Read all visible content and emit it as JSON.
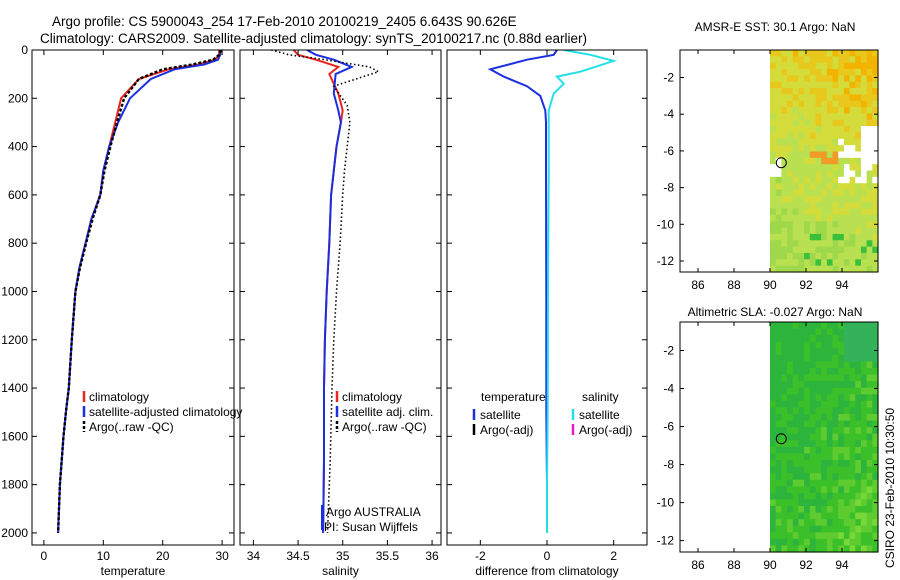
{
  "header": {
    "line1": "Argo profile: CS 5900043_254 17-Feb-2010 20100219_2405 6.643S 90.626E",
    "line2": "Climatology: CARS2009. Satellite-adjusted climatology: synTS_20100217.nc (0.88d earlier)"
  },
  "colors": {
    "climatology": "#e8251f",
    "satellite": "#1c2fe0",
    "argo": "#000000",
    "salinity_satellite": "#22e0e8",
    "argo_adj_salinity": "#e020c0"
  },
  "chart_data": [
    {
      "type": "line",
      "id": "temperature",
      "xlabel": "temperature",
      "xlim": [
        -2,
        32
      ],
      "ylim": [
        2050,
        0
      ],
      "xticks": [
        0,
        10,
        20,
        30
      ],
      "yticks": [
        0,
        200,
        400,
        600,
        800,
        1000,
        1200,
        1400,
        1600,
        1800,
        2000
      ],
      "series": [
        {
          "name": "climatology",
          "style": "line",
          "color_key": "climatology",
          "x": [
            29.5,
            29.5,
            28.8,
            26,
            21,
            16,
            13,
            12,
            11,
            10,
            9.5,
            8,
            7,
            6,
            5.3,
            4.7,
            4.2,
            3.7,
            3.3,
            3.0,
            2.7,
            2.4
          ],
          "y": [
            0,
            20,
            40,
            60,
            80,
            120,
            200,
            300,
            400,
            500,
            600,
            700,
            800,
            900,
            1000,
            1200,
            1400,
            1500,
            1600,
            1700,
            1800,
            2000
          ]
        },
        {
          "name": "satellite-adjusted climatology",
          "style": "line",
          "color_key": "satellite",
          "x": [
            29.7,
            29.7,
            29.3,
            27,
            22,
            18,
            14.5,
            12.5,
            11,
            10,
            9.5,
            8,
            7,
            6,
            5.3,
            4.7,
            4.2,
            3.7,
            3.3,
            3.0,
            2.7,
            2.4
          ],
          "y": [
            0,
            20,
            40,
            60,
            80,
            120,
            200,
            300,
            400,
            500,
            600,
            700,
            800,
            900,
            1000,
            1200,
            1400,
            1500,
            1600,
            1700,
            1800,
            2000
          ]
        },
        {
          "name": "Argo(..raw -QC)",
          "style": "dashed",
          "color_key": "argo",
          "x": [
            29.8,
            29.5,
            28.5,
            25,
            20,
            16,
            13.5,
            12.3,
            11.2,
            10.2,
            9.5,
            8.2,
            7.1,
            6.1,
            5.3,
            4.7,
            4.2,
            3.7,
            3.3,
            3.0,
            2.7,
            2.4
          ],
          "y": [
            0,
            20,
            40,
            60,
            80,
            120,
            200,
            300,
            400,
            500,
            600,
            700,
            800,
            900,
            1000,
            1200,
            1400,
            1500,
            1600,
            1700,
            1800,
            2000
          ]
        }
      ],
      "legend": {
        "position": "bottom-right",
        "entries": [
          {
            "label": "climatology",
            "color_key": "climatology"
          },
          {
            "label": "satellite-adjusted climatology",
            "color_key": "satellite"
          },
          {
            "label": "Argo(..raw -QC)",
            "color_key": "argo"
          }
        ]
      }
    },
    {
      "type": "line",
      "id": "salinity",
      "xlabel": "salinity",
      "xlim": [
        33.85,
        36.1
      ],
      "ylim": [
        2050,
        0
      ],
      "xticks": [
        34,
        34.5,
        35,
        35.5,
        36
      ],
      "xticklabels": [
        "34",
        "34.5",
        "35",
        "35.5",
        "36"
      ],
      "series": [
        {
          "name": "climatology",
          "style": "line",
          "color_key": "climatology",
          "x": [
            34.45,
            34.5,
            34.7,
            34.95,
            34.85,
            34.95,
            35.0,
            34.98,
            34.93,
            34.9,
            34.87,
            34.85,
            34.82,
            34.8,
            34.79,
            34.79,
            34.78
          ],
          "y": [
            0,
            20,
            40,
            70,
            100,
            180,
            250,
            300,
            400,
            500,
            600,
            800,
            1000,
            1200,
            1400,
            1700,
            2000
          ]
        },
        {
          "name": "satellite adj. clim.",
          "style": "line",
          "color_key": "satellite",
          "x": [
            34.6,
            34.7,
            34.9,
            35.1,
            34.92,
            34.9,
            34.95,
            34.98,
            34.93,
            34.9,
            34.87,
            34.85,
            34.82,
            34.8,
            34.79,
            34.79,
            34.78
          ],
          "y": [
            0,
            20,
            40,
            70,
            100,
            180,
            250,
            300,
            400,
            500,
            600,
            800,
            1000,
            1200,
            1400,
            1700,
            2000
          ]
        },
        {
          "name": "Argo(..raw -QC)",
          "style": "dotted",
          "color_key": "argo",
          "x": [
            34.2,
            34.4,
            34.8,
            35.3,
            35.4,
            34.9,
            35.05,
            35.08,
            35.05,
            35.02,
            35.0,
            34.97,
            34.93,
            34.9,
            34.88,
            34.86,
            34.83
          ],
          "y": [
            0,
            20,
            40,
            70,
            90,
            150,
            230,
            300,
            400,
            500,
            600,
            800,
            1000,
            1200,
            1400,
            1700,
            2000
          ]
        }
      ],
      "legend": {
        "position": "bottom-right",
        "entries": [
          {
            "label": "climatology",
            "color_key": "climatology"
          },
          {
            "label": "satellite adj. clim.",
            "color_key": "satellite"
          },
          {
            "label": "Argo(..raw -QC)",
            "color_key": "argo"
          }
        ]
      },
      "annotation": {
        "line1": "Argo AUSTRALIA",
        "line2": "PI: Susan Wijffels"
      }
    },
    {
      "type": "line",
      "id": "difference",
      "xlabel": "difference from climatology",
      "xlim": [
        -3.0,
        3.0
      ],
      "ylim": [
        2050,
        0
      ],
      "xticks": [
        -2,
        0,
        2
      ],
      "series": [
        {
          "name": "temperature satellite",
          "style": "line",
          "color_key": "satellite",
          "x": [
            0.3,
            0.2,
            -0.6,
            -1.7,
            -1.3,
            -0.6,
            -0.2,
            -0.05,
            -0.03,
            -0.03,
            -0.02,
            -0.02,
            0,
            0
          ],
          "y": [
            0,
            20,
            40,
            80,
            110,
            150,
            190,
            250,
            300,
            500,
            1000,
            1500,
            1800,
            2000
          ]
        },
        {
          "name": "salinity satellite",
          "style": "line",
          "color_key": "salinity_satellite",
          "x": [
            0.5,
            1.3,
            2.0,
            1.0,
            0.3,
            0.5,
            0.2,
            0.05,
            0.05,
            0.05,
            0.03,
            0.02,
            0,
            0
          ],
          "y": [
            0,
            20,
            45,
            90,
            110,
            140,
            180,
            250,
            300,
            500,
            1000,
            1500,
            1800,
            2000
          ]
        }
      ],
      "legend": {
        "position": "bottom",
        "entries": [
          {
            "group": "temperature",
            "label": "satellite",
            "color_key": "satellite"
          },
          {
            "group": "temperature",
            "label": "Argo(-adj)",
            "color_key": "argo"
          },
          {
            "group": "salinity",
            "label": "satellite",
            "color_key": "salinity_satellite"
          },
          {
            "group": "salinity",
            "label": "Argo(-adj)",
            "color_key": "argo_adj_salinity"
          }
        ]
      }
    },
    {
      "type": "heatmap",
      "id": "sst_map",
      "title": "AMSR-E SST: 30.1 Argo: NaN",
      "xlim": [
        85,
        96
      ],
      "ylim": [
        -12.6,
        -0.5
      ],
      "xticks": [
        86,
        88,
        90,
        92,
        94
      ],
      "yticks": [
        -2,
        -4,
        -6,
        -8,
        -10,
        -12
      ],
      "data_lon_range": [
        90,
        96
      ],
      "marker": {
        "lon": 90.626,
        "lat": -6.643
      }
    },
    {
      "type": "heatmap",
      "id": "sla_map",
      "title": "Altimetric SLA: -0.027 Argo: NaN",
      "xlim": [
        85,
        96
      ],
      "ylim": [
        -12.6,
        -0.5
      ],
      "xticks": [
        86,
        88,
        90,
        92,
        94
      ],
      "yticks": [
        -2,
        -4,
        -6,
        -8,
        -10,
        -12
      ],
      "data_lon_range": [
        90,
        96
      ],
      "marker": {
        "lon": 90.626,
        "lat": -6.643
      }
    }
  ],
  "footer": {
    "credit": "CSIRO 23-Feb-2010 10:30:50"
  }
}
